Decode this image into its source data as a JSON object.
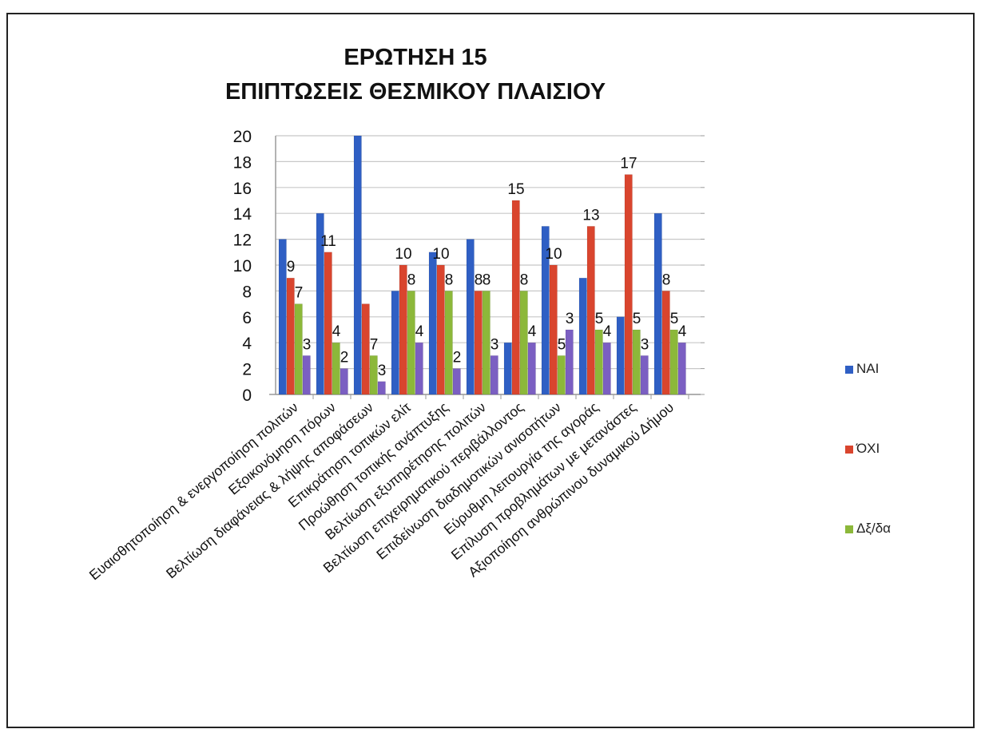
{
  "chart_data": {
    "type": "bar",
    "title_line1": "ΕΡΩΤΗΣΗ 15",
    "title_line2": "ΕΠΙΠΤΩΣΕΙΣ ΘΕΣΜΙΚΟΥ ΠΛΑΙΣΙΟΥ",
    "categories": [
      "Ευαισθητοποίηση & ενεργοποίηση πολιτών",
      "Εξοικονόμηση πόρων",
      "Βελτίωση διαφάνειας & λήψης αποφάσεων",
      "Επικράτηση τοπικών ελίτ",
      "Προώθηση τοπικής ανάπτυξης",
      "Βελτίωση εξυπηρέτησης πολιτών",
      "Βελτίωση επιχειρηματικού περιβάλλοντος",
      "Επιδείνωση διαδημοτικών ανισοτήτων",
      "Εύρυθμη λειτουργία της αγοράς",
      "Επίλυση προβλημάτων με μετανάστες",
      "Αξιοποίηση ανθρώπινου δυναμικού Δήμου"
    ],
    "series": [
      {
        "name": "ΝΑΙ",
        "color": "#2f5fc4",
        "values": [
          12,
          14,
          20,
          8,
          11,
          12,
          4,
          13,
          9,
          6,
          14
        ]
      },
      {
        "name": "ΌΧΙ",
        "color": "#d9452e",
        "values": [
          9,
          11,
          7,
          10,
          10,
          8,
          15,
          10,
          13,
          17,
          8
        ]
      },
      {
        "name": "Δξ/δα",
        "color": "#8cb83a",
        "values": [
          7,
          4,
          3,
          8,
          8,
          8,
          8,
          3,
          5,
          5,
          5
        ]
      },
      {
        "name": "",
        "color": "#7b5fc2",
        "values": [
          3,
          2,
          1,
          4,
          2,
          3,
          4,
          5,
          4,
          3,
          4
        ]
      }
    ],
    "data_labels": [
      {
        "category": 0,
        "text": "9"
      },
      {
        "category": 0,
        "text": "7"
      },
      {
        "category": 0,
        "text": "3"
      },
      {
        "category": 1,
        "text": "11"
      },
      {
        "category": 1,
        "text": "4"
      },
      {
        "category": 1,
        "text": "2"
      },
      {
        "category": 2,
        "text": "7"
      },
      {
        "category": 2,
        "text": "3"
      },
      {
        "category": 3,
        "text": "10"
      },
      {
        "category": 3,
        "text": "8"
      },
      {
        "category": 3,
        "text": "4"
      },
      {
        "category": 4,
        "text": "10"
      },
      {
        "category": 4,
        "text": "8"
      },
      {
        "category": 4,
        "text": "2"
      },
      {
        "category": 5,
        "text": "8"
      },
      {
        "category": 5,
        "text": "8"
      },
      {
        "category": 5,
        "text": "3"
      },
      {
        "category": 6,
        "text": "15"
      },
      {
        "category": 6,
        "text": "8"
      },
      {
        "category": 6,
        "text": "4"
      },
      {
        "category": 7,
        "text": "10"
      },
      {
        "category": 7,
        "text": "5"
      },
      {
        "category": 7,
        "text": "3"
      },
      {
        "category": 8,
        "text": "13"
      },
      {
        "category": 8,
        "text": "5"
      },
      {
        "category": 8,
        "text": "4"
      },
      {
        "category": 9,
        "text": "17"
      },
      {
        "category": 9,
        "text": "5"
      },
      {
        "category": 9,
        "text": "3"
      },
      {
        "category": 10,
        "text": "8"
      },
      {
        "category": 10,
        "text": "5"
      },
      {
        "category": 10,
        "text": "4"
      }
    ],
    "ylim": [
      0,
      20
    ],
    "yticks": [
      "0",
      "2",
      "4",
      "6",
      "8",
      "10",
      "12",
      "14",
      "16",
      "18",
      "20"
    ],
    "grid": true,
    "legend_position": "right"
  }
}
